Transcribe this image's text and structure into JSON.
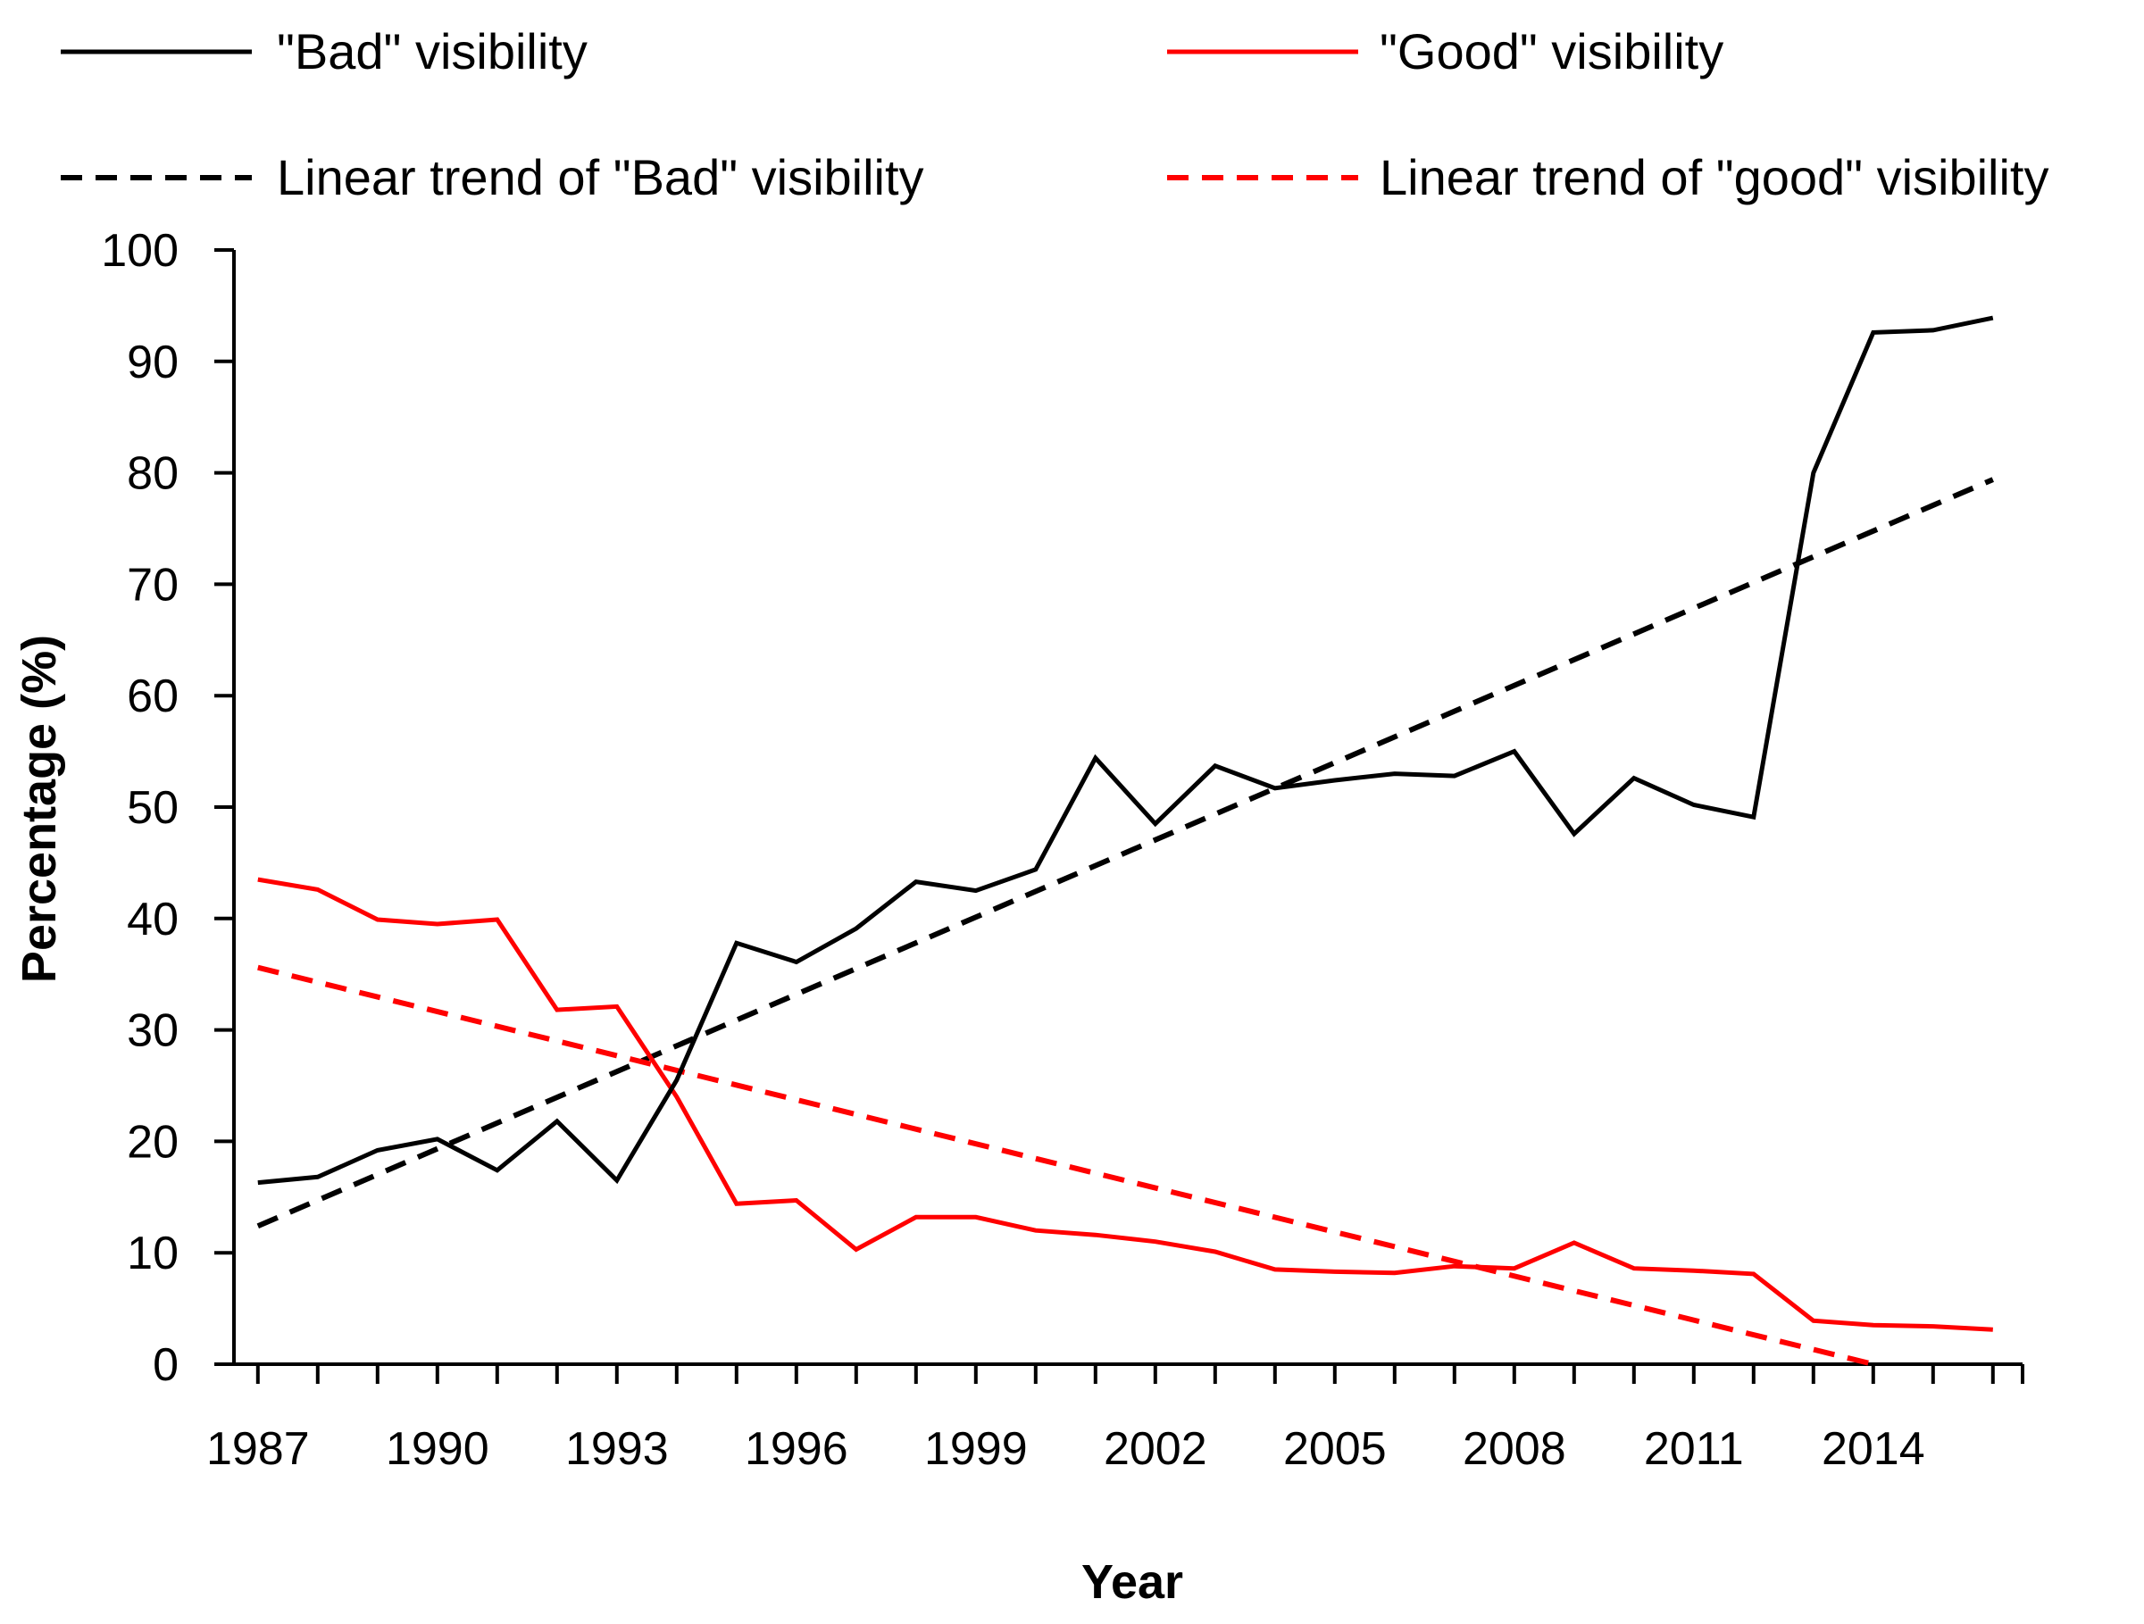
{
  "chart_data": {
    "type": "line",
    "title": "",
    "xlabel": "Year",
    "ylabel": "Percentage (%)",
    "ylim": [
      0,
      100
    ],
    "xlim": [
      1987,
      2016
    ],
    "y_ticks": [
      0,
      10,
      20,
      30,
      40,
      50,
      60,
      70,
      80,
      90,
      100
    ],
    "x_tick_labels": [
      1987,
      1990,
      1993,
      1996,
      1999,
      2002,
      2005,
      2008,
      2011,
      2014
    ],
    "legend_position": "top",
    "x": [
      1987,
      1988,
      1989,
      1990,
      1991,
      1992,
      1993,
      1994,
      1995,
      1996,
      1997,
      1998,
      1999,
      2000,
      2001,
      2002,
      2003,
      2004,
      2005,
      2006,
      2007,
      2008,
      2009,
      2010,
      2011,
      2012,
      2013,
      2014,
      2015,
      2016
    ],
    "series": [
      {
        "name": "\"Bad\" visibility",
        "color": "#000000",
        "style": "solid",
        "values": [
          16.3,
          16.8,
          19.2,
          20.2,
          17.4,
          21.8,
          16.5,
          25.5,
          37.8,
          36.1,
          39.1,
          43.3,
          42.5,
          44.4,
          54.4,
          48.5,
          53.7,
          51.7,
          52.4,
          53.0,
          52.8,
          55.0,
          47.6,
          52.6,
          50.2,
          49.1,
          80.0,
          92.6,
          92.8,
          93.9
        ]
      },
      {
        "name": "\"Good\" visibility",
        "color": "#ff0000",
        "style": "solid",
        "values": [
          43.5,
          42.6,
          39.9,
          39.5,
          39.9,
          31.8,
          32.1,
          24.0,
          14.4,
          14.7,
          10.3,
          13.2,
          13.2,
          12.0,
          11.6,
          11.0,
          10.1,
          8.5,
          8.3,
          8.2,
          8.8,
          8.6,
          10.9,
          8.6,
          8.4,
          8.1,
          3.9,
          3.5,
          3.4,
          3.1
        ]
      },
      {
        "name": "Linear trend of \"Bad\" visibility",
        "color": "#000000",
        "style": "dashed",
        "x": [
          1987,
          2016
        ],
        "values": [
          12.4,
          79.4
        ]
      },
      {
        "name": "Linear trend of \"good\" visibility",
        "color": "#ff0000",
        "style": "dashed",
        "x": [
          1987,
          2014
        ],
        "values": [
          35.6,
          0.0
        ]
      }
    ]
  }
}
